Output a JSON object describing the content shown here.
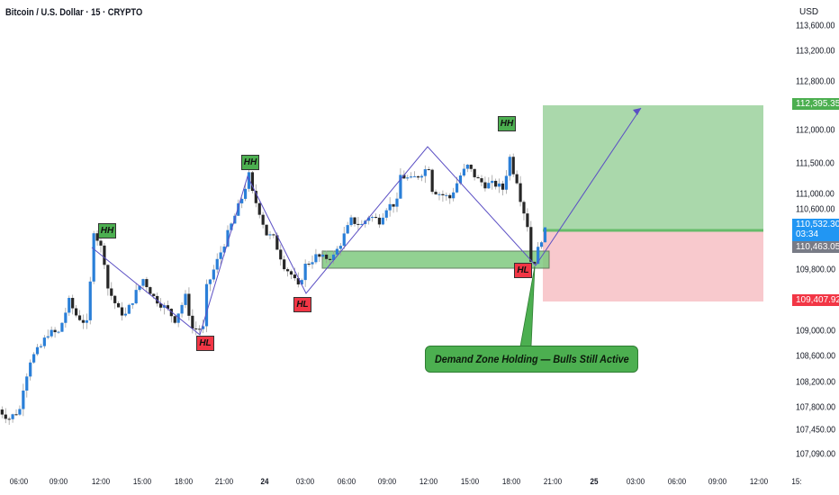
{
  "header": {
    "title": "Bitcoin / U.S. Dollar · 15 · CRYPTO",
    "currency": "USD"
  },
  "colors": {
    "up": "#2a7fd8",
    "down": "#262626",
    "wick": "#9e9e9e",
    "zigzag": "#5b4fc4",
    "target_zone": "#a5d6a7",
    "stop_zone": "#f8c9cd",
    "demand_zone": "#7fc97f",
    "tag_green": "#4caf50",
    "tag_blue": "#2196f3",
    "tag_grey": "#787b86",
    "tag_red": "#f23645"
  },
  "chart_data": {
    "type": "candlestick",
    "symbol": "Bitcoin / U.S. Dollar",
    "interval": "15",
    "y_axis_labels": [
      "113,600.00",
      "113,200.00",
      "112,800.00",
      "112,000.00",
      "111,500.00",
      "111,000.00",
      "110,600.00",
      "109,800.00",
      "109,000.00",
      "108,600.00",
      "108,200.00",
      "107,800.00",
      "107,450.00",
      "107,090.00"
    ],
    "x_axis_labels": [
      "06:00",
      "09:00",
      "12:00",
      "15:00",
      "18:00",
      "21:00",
      "24",
      "03:00",
      "06:00",
      "09:00",
      "12:00",
      "15:00",
      "18:00",
      "21:00",
      "25",
      "03:00",
      "06:00",
      "09:00",
      "12:00",
      "15:"
    ],
    "approx_close_path": [
      [
        "23 04:45",
        107771
      ],
      [
        "23 05:30",
        107635
      ],
      [
        "23 06:15",
        107771
      ],
      [
        "23 06:30",
        108112
      ],
      [
        "23 07:00",
        108521
      ],
      [
        "23 07:45",
        108726
      ],
      [
        "23 08:15",
        108931
      ],
      [
        "23 09:00",
        108931
      ],
      [
        "23 09:45",
        109408
      ],
      [
        "23 10:15",
        109203
      ],
      [
        "23 11:00",
        109067
      ],
      [
        "23 11:15",
        109681
      ],
      [
        "23 11:30",
        110499
      ],
      [
        "23 12:00",
        110227
      ],
      [
        "23 12:15",
        110022
      ],
      [
        "23 12:30",
        109613
      ],
      [
        "23 13:15",
        109272
      ],
      [
        "23 13:45",
        109203
      ],
      [
        "23 14:30",
        109544
      ],
      [
        "23 15:00",
        109749
      ],
      [
        "23 15:45",
        109476
      ],
      [
        "23 16:45",
        109272
      ],
      [
        "23 17:15",
        109135
      ],
      [
        "23 18:00",
        109476
      ],
      [
        "23 18:30",
        108999
      ],
      [
        "23 19:15",
        108999
      ],
      [
        "23 19:30",
        109613
      ],
      [
        "23 20:15",
        110022
      ],
      [
        "23 20:45",
        110295
      ],
      [
        "23 21:30",
        110704
      ],
      [
        "23 22:00",
        110977
      ],
      [
        "23 22:30",
        111318
      ],
      [
        "23 22:45",
        111045
      ],
      [
        "23 23:15",
        110772
      ],
      [
        "23 23:45",
        110431
      ],
      [
        "24 00:15",
        110363
      ],
      [
        "24 01:00",
        109954
      ],
      [
        "24 01:30",
        109817
      ],
      [
        "24 02:00",
        109613
      ],
      [
        "24 02:30",
        109954
      ],
      [
        "24 03:15",
        110090
      ],
      [
        "24 03:45",
        110063
      ],
      [
        "24 04:30",
        110090
      ],
      [
        "24 05:00",
        110295
      ],
      [
        "24 05:45",
        110636
      ],
      [
        "24 06:30",
        110568
      ],
      [
        "24 07:00",
        110704
      ],
      [
        "24 07:45",
        110636
      ],
      [
        "24 08:15",
        110840
      ],
      [
        "24 09:00",
        110908
      ],
      [
        "24 09:15",
        111318
      ],
      [
        "24 10:00",
        111249
      ],
      [
        "24 10:30",
        111318
      ],
      [
        "24 11:15",
        111454
      ],
      [
        "24 11:30",
        111113
      ],
      [
        "24 12:00",
        111045
      ],
      [
        "24 12:45",
        110977
      ],
      [
        "24 13:30",
        111318
      ],
      [
        "24 14:00",
        111454
      ],
      [
        "24 14:45",
        111249
      ],
      [
        "24 15:15",
        111181
      ],
      [
        "24 16:00",
        111181
      ],
      [
        "24 16:30",
        111113
      ],
      [
        "24 17:00",
        111590
      ],
      [
        "24 17:15",
        111386
      ],
      [
        "24 17:30",
        111249
      ],
      [
        "24 17:45",
        110977
      ],
      [
        "24 18:15",
        110568
      ],
      [
        "24 18:30",
        110022
      ],
      [
        "24 18:45",
        110022
      ],
      [
        "24 19:15",
        110363
      ],
      [
        "24 19:30",
        110532
      ]
    ],
    "price_tags": {
      "target": "112,395.35",
      "last": "110,532.30",
      "countdown": "03:34",
      "entry": "110,463.05",
      "stop": "109,407.92"
    },
    "pivots": [
      {
        "label": "HH",
        "type": "high"
      },
      {
        "label": "HL",
        "type": "low"
      },
      {
        "label": "HH",
        "type": "high"
      },
      {
        "label": "HL",
        "type": "low"
      },
      {
        "label": "HH",
        "type": "high"
      },
      {
        "label": "HL",
        "type": "low"
      }
    ],
    "annotation": "Demand Zone Holding — Bulls Still Active"
  }
}
